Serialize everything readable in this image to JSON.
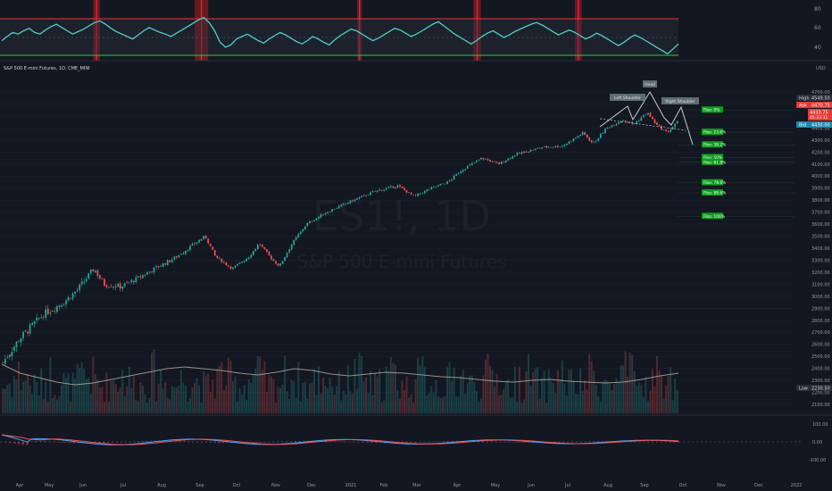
{
  "header": {
    "symbol_title": "S&P 500 E-mini Futures, 1D, CME_MINI",
    "currency": "USD"
  },
  "watermark": {
    "symbol": "ES1!, 1D",
    "name": "S&P 500 E-mini Futures"
  },
  "colors": {
    "background": "#131722",
    "up": "#26a69a",
    "down": "#ef5350",
    "rsi_line": "#4dd0c8",
    "fib_green": "#0f9d1f",
    "pattern_line": "#c8ccd4",
    "volume_ma": "#b8b0a0",
    "macd": "#4da3ff",
    "signal": "#ef5350"
  },
  "rsi_panel": {
    "levels": [
      "80",
      "60",
      "40"
    ],
    "upper_band": 70,
    "lower_band": 30,
    "shaded_ranges": [
      [
        0.135,
        0.145
      ],
      [
        0.285,
        0.305
      ],
      [
        0.525,
        0.532
      ],
      [
        0.697,
        0.708
      ],
      [
        0.847,
        0.857
      ]
    ],
    "series": [
      50,
      55,
      60,
      58,
      62,
      65,
      60,
      58,
      63,
      67,
      70,
      66,
      62,
      58,
      61,
      64,
      68,
      72,
      74,
      70,
      65,
      61,
      58,
      55,
      52,
      57,
      62,
      66,
      63,
      60,
      58,
      55,
      59,
      63,
      67,
      71,
      75,
      78,
      72,
      62,
      48,
      42,
      45,
      52,
      55,
      58,
      54,
      50,
      47,
      52,
      56,
      60,
      57,
      53,
      49,
      46,
      50,
      55,
      52,
      48,
      45,
      51,
      56,
      60,
      64,
      62,
      58,
      54,
      50,
      53,
      57,
      61,
      65,
      63,
      59,
      55,
      58,
      62,
      66,
      70,
      73,
      68,
      63,
      58,
      54,
      50,
      46,
      50,
      55,
      59,
      62,
      58,
      54,
      57,
      61,
      64,
      67,
      70,
      72,
      69,
      65,
      61,
      57,
      60,
      63,
      60,
      56,
      52,
      55,
      59,
      56,
      52,
      48,
      44,
      48,
      53,
      57,
      54,
      50,
      46,
      42,
      38,
      34,
      40,
      46
    ]
  },
  "price_axis": {
    "labels": [
      "4700.00",
      "4600.00",
      "4500.00",
      "4400.00",
      "4300.00",
      "4200.00",
      "4100.00",
      "4000.00",
      "3900.00",
      "3800.00",
      "3700.00",
      "3600.00",
      "3500.00",
      "3400.00",
      "3300.00",
      "3200.00",
      "3100.00",
      "3000.00",
      "2900.00",
      "2800.00",
      "2700.00",
      "2600.00",
      "2500.00",
      "2400.00",
      "2300.00",
      "2200.00",
      "2100.00"
    ],
    "high_tag": {
      "label": "High",
      "value": "4549.50"
    },
    "ask_tag": {
      "label": "Ask",
      "value": "4470.75"
    },
    "last_tag": {
      "value": "4433.75",
      "countdown": "05:23:31"
    },
    "bid_tag": {
      "label": "Bid",
      "value": "4430.00"
    },
    "low_tag": {
      "label": "Low",
      "value": "2230.50"
    }
  },
  "fib_levels": [
    {
      "label": "Fibo:",
      "value": "0%"
    },
    {
      "label": "Fibo:",
      "value": "23.6%"
    },
    {
      "label": "Fibo:",
      "value": "38.2%"
    },
    {
      "label": "Fibo:",
      "value": "50%"
    },
    {
      "label": "Fibo:",
      "value": "61.8%"
    },
    {
      "label": "Fibo:",
      "value": "78.6%"
    },
    {
      "label": "Fibo:",
      "value": "88.6%"
    },
    {
      "label": "Fibo:",
      "value": "100%"
    }
  ],
  "pattern_labels": {
    "left_shoulder": "Left Shoulder",
    "head": "Head",
    "right_shoulder": "Right Shoulder"
  },
  "macd_panel": {
    "levels": [
      "100.00",
      "0.00",
      "-100.00"
    ]
  },
  "time_axis": {
    "labels": [
      "Apr",
      "May",
      "Jun",
      "Jul",
      "Aug",
      "Sep",
      "Oct",
      "Nov",
      "Dec",
      "2021",
      "Feb",
      "Mar",
      "Apr",
      "May",
      "Jun",
      "Jul",
      "Aug",
      "Sep",
      "Oct",
      "Nov",
      "Dec",
      "2022"
    ]
  },
  "chart_data": {
    "type": "candlestick",
    "title": "S&P 500 E-mini Futures, 1D, CME_MINI",
    "ylim": [
      2100,
      4750
    ],
    "price_anchors": [
      [
        0,
        2450
      ],
      [
        0.025,
        2650
      ],
      [
        0.06,
        2850
      ],
      [
        0.09,
        2950
      ],
      [
        0.11,
        3050
      ],
      [
        0.135,
        3230
      ],
      [
        0.15,
        3100
      ],
      [
        0.175,
        3080
      ],
      [
        0.2,
        3150
      ],
      [
        0.225,
        3230
      ],
      [
        0.255,
        3320
      ],
      [
        0.3,
        3500
      ],
      [
        0.315,
        3330
      ],
      [
        0.34,
        3230
      ],
      [
        0.365,
        3330
      ],
      [
        0.38,
        3440
      ],
      [
        0.4,
        3300
      ],
      [
        0.41,
        3250
      ],
      [
        0.43,
        3450
      ],
      [
        0.45,
        3600
      ],
      [
        0.48,
        3700
      ],
      [
        0.52,
        3800
      ],
      [
        0.55,
        3870
      ],
      [
        0.585,
        3920
      ],
      [
        0.61,
        3830
      ],
      [
        0.635,
        3900
      ],
      [
        0.66,
        3950
      ],
      [
        0.68,
        4050
      ],
      [
        0.71,
        4150
      ],
      [
        0.735,
        4100
      ],
      [
        0.76,
        4180
      ],
      [
        0.8,
        4240
      ],
      [
        0.83,
        4250
      ],
      [
        0.86,
        4360
      ],
      [
        0.875,
        4270
      ],
      [
        0.895,
        4400
      ],
      [
        0.92,
        4470
      ],
      [
        0.935,
        4430
      ],
      [
        0.955,
        4530
      ],
      [
        0.97,
        4420
      ],
      [
        0.985,
        4360
      ],
      [
        1.0,
        4450
      ]
    ],
    "fib_values": [
      4550,
      4365,
      4260,
      4155,
      4115,
      3945,
      3860,
      3665
    ],
    "volume_ma": [
      0.55,
      0.45,
      0.4,
      0.35,
      0.32,
      0.34,
      0.38,
      0.42,
      0.46,
      0.5,
      0.52,
      0.5,
      0.48,
      0.45,
      0.43,
      0.46,
      0.5,
      0.48,
      0.44,
      0.42,
      0.44,
      0.46,
      0.45,
      0.43,
      0.41,
      0.4,
      0.38,
      0.36,
      0.35,
      0.37,
      0.38,
      0.36,
      0.35,
      0.34,
      0.35,
      0.38,
      0.42,
      0.45
    ],
    "macd_ylim": [
      -100,
      100
    ]
  }
}
